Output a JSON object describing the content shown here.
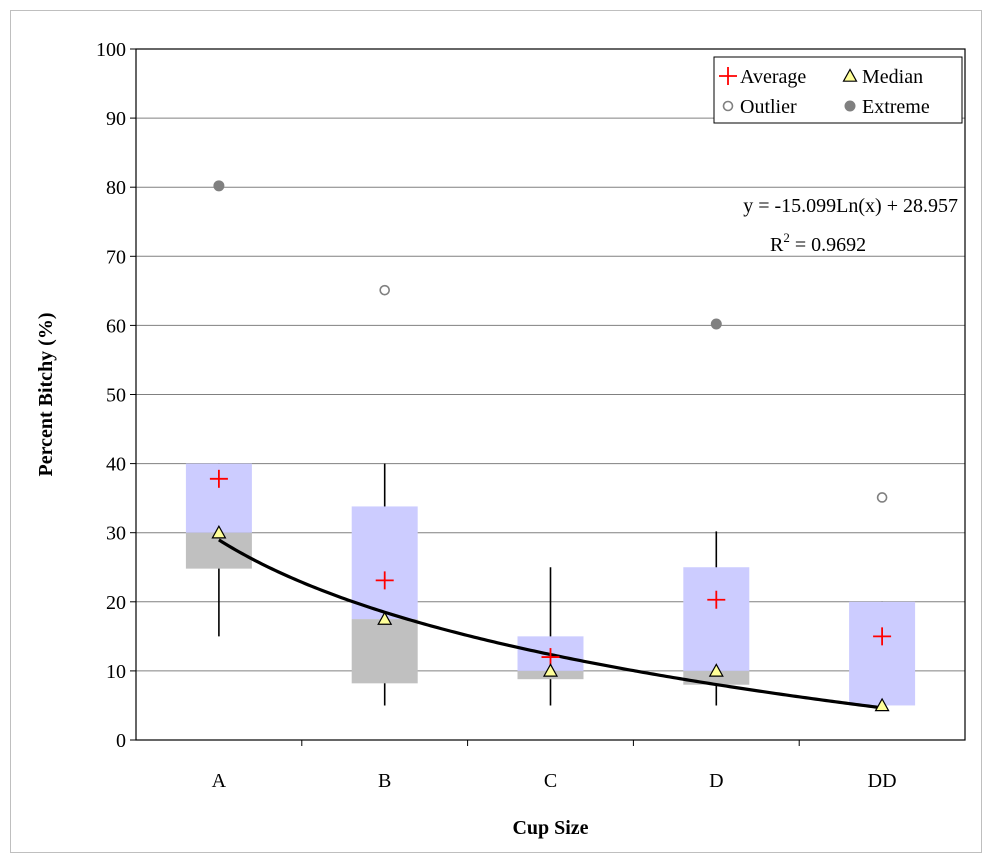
{
  "chart_data": {
    "type": "box",
    "title": "",
    "xlabel": "Cup Size",
    "ylabel": "Percent Bitchy (%)",
    "ylim": [
      0,
      100
    ],
    "yticks": [
      0,
      10,
      20,
      30,
      40,
      50,
      60,
      70,
      80,
      90,
      100
    ],
    "grid": true,
    "legend_position": "top-right",
    "categories": [
      "A",
      "B",
      "C",
      "D",
      "DD"
    ],
    "boxes": [
      {
        "category": "A",
        "whisker_low": 15,
        "q1": 24.8,
        "median": 30,
        "q3": 40,
        "whisker_high": 40,
        "average": 37.8,
        "outliers": [],
        "extremes": [
          80.2
        ]
      },
      {
        "category": "B",
        "whisker_low": 5,
        "q1": 8.2,
        "median": 17.5,
        "q3": 33.8,
        "whisker_high": 40,
        "average": 23.1,
        "outliers": [
          65.1
        ],
        "extremes": []
      },
      {
        "category": "C",
        "whisker_low": 5,
        "q1": 8.8,
        "median": 10,
        "q3": 15,
        "whisker_high": 25,
        "average": 12,
        "outliers": [],
        "extremes": []
      },
      {
        "category": "D",
        "whisker_low": 5,
        "q1": 8,
        "median": 10,
        "q3": 25,
        "whisker_high": 30.2,
        "average": 20.3,
        "outliers": [],
        "extremes": [
          60.2
        ]
      },
      {
        "category": "DD",
        "whisker_low": 5,
        "q1": 5,
        "median": 5,
        "q3": 20,
        "whisker_high": 20,
        "average": 15,
        "outliers": [
          35.1
        ],
        "extremes": []
      }
    ],
    "trendline": {
      "type": "logarithmic",
      "a": -15.099,
      "b": 28.957,
      "x_from": 1,
      "x_to": 5
    },
    "annotations": {
      "equation": "y = -15.099Ln(x) + 28.957",
      "r2_prefix": "R",
      "r2_sup": "2",
      "r2_value": " = 0.9692"
    },
    "legend": [
      {
        "label": "Average",
        "marker": "plus"
      },
      {
        "label": "Median",
        "marker": "triangle"
      },
      {
        "label": "Outlier",
        "marker": "open-circle"
      },
      {
        "label": "Extreme",
        "marker": "filled-circle"
      }
    ],
    "colors": {
      "upper_box": "#ccccff",
      "lower_box": "#c0c0c0",
      "average": "#ff0000",
      "median_fill": "#ffff99",
      "outlier": "#808080",
      "extreme": "#808080",
      "trendline": "#000000",
      "grid": "#808080"
    }
  }
}
